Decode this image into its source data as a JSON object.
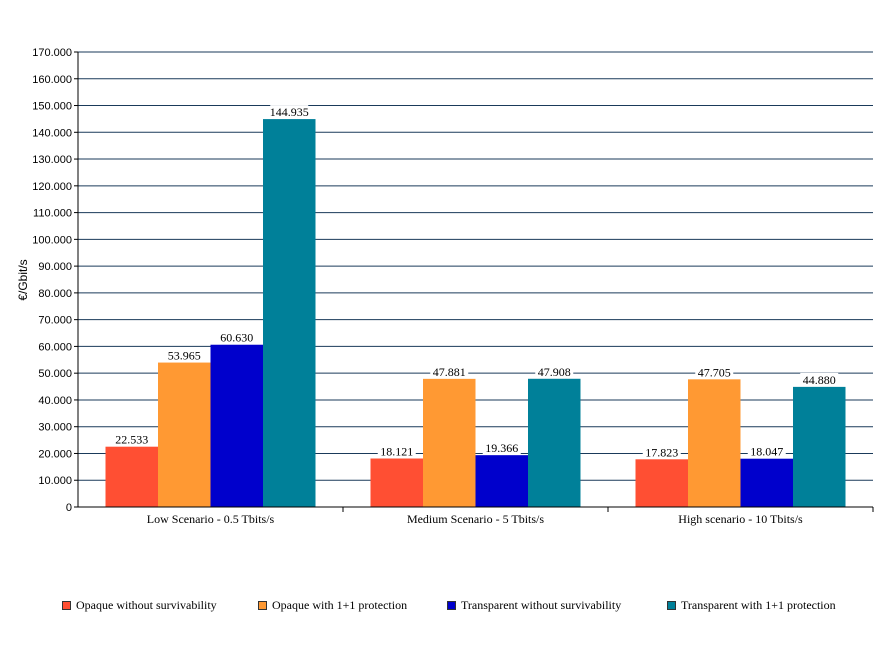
{
  "chart_data": {
    "type": "bar",
    "ylabel": "€/Gbit/s",
    "ylim": [
      0,
      170000
    ],
    "ytick_step": 10000,
    "ytick_labels": [
      "0",
      "10.000",
      "20.000",
      "30.000",
      "40.000",
      "50.000",
      "60.000",
      "70.000",
      "80.000",
      "90.000",
      "100.000",
      "110.000",
      "120.000",
      "130.000",
      "140.000",
      "150.000",
      "160.000",
      "170.000"
    ],
    "grid": true,
    "legend_position": "bottom",
    "categories": [
      "Low Scenario - 0.5 Tbits/s",
      "Medium Scenario - 5 Tbits/s",
      "High scenario - 10 Tbits/s"
    ],
    "series": [
      {
        "name": "Opaque without survivability",
        "color": "#ff4f33",
        "values": [
          22533,
          18121,
          17823
        ],
        "labels": [
          "22.533",
          "18.121",
          "17.823"
        ]
      },
      {
        "name": "Opaque with 1+1 protection",
        "color": "#ff9933",
        "values": [
          53965,
          47881,
          47705
        ],
        "labels": [
          "53.965",
          "47.881",
          "47.705"
        ]
      },
      {
        "name": "Transparent without survivability",
        "color": "#0000cc",
        "values": [
          60630,
          19366,
          18047
        ],
        "labels": [
          "60.630",
          "19.366",
          "18.047"
        ]
      },
      {
        "name": "Transparent with 1+1 protection",
        "color": "#008099",
        "values": [
          144935,
          47908,
          44880
        ],
        "labels": [
          "144.935",
          "47.908",
          "44.880"
        ]
      }
    ]
  }
}
